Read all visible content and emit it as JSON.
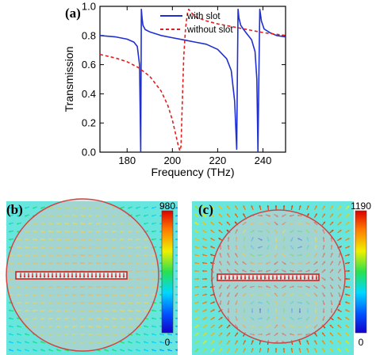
{
  "panel_a": {
    "label": "(a)",
    "chart_data": {
      "type": "line",
      "title": "",
      "xlabel": "Frequency (THz)",
      "ylabel": "Transmission",
      "xlim": [
        168,
        250
      ],
      "ylim": [
        0,
        1.0
      ],
      "xticks": [
        180,
        200,
        220,
        240
      ],
      "yticks": [
        0.0,
        0.2,
        0.4,
        0.6,
        0.8,
        1.0
      ],
      "grid": false,
      "legend_position": "top-right",
      "series": [
        {
          "name": "with slot",
          "color": "#1f2fd0",
          "style": "solid",
          "x": [
            168,
            175,
            180,
            183,
            184.5,
            185.5,
            186.0,
            186.3,
            186.6,
            187.0,
            188,
            190,
            195,
            200,
            205,
            210,
            215,
            220,
            224,
            226,
            227.5,
            228.4,
            228.7,
            229.0,
            229.4,
            230.2,
            231.5,
            233,
            235,
            236.5,
            237.3,
            237.8,
            238.2,
            238.6,
            239.3,
            240.5,
            243,
            246,
            250
          ],
          "y": [
            0.8,
            0.79,
            0.775,
            0.755,
            0.725,
            0.6,
            0.0,
            0.98,
            0.92,
            0.87,
            0.84,
            0.825,
            0.8,
            0.785,
            0.77,
            0.755,
            0.74,
            0.705,
            0.64,
            0.56,
            0.35,
            0.02,
            0.5,
            0.98,
            0.92,
            0.87,
            0.84,
            0.81,
            0.77,
            0.69,
            0.5,
            0.0,
            0.5,
            0.98,
            0.9,
            0.845,
            0.82,
            0.8,
            0.79
          ]
        },
        {
          "name": "without slot",
          "color": "#e02020",
          "style": "dashed",
          "x": [
            168,
            175,
            180,
            185,
            190,
            195,
            198,
            200,
            201.5,
            202.5,
            203.3,
            203.8,
            204.2,
            205.0,
            205.8,
            206.6,
            207.2,
            208.2,
            210,
            215,
            220,
            230,
            240,
            250
          ],
          "y": [
            0.67,
            0.645,
            0.62,
            0.58,
            0.52,
            0.42,
            0.32,
            0.22,
            0.12,
            0.05,
            0.01,
            0.04,
            0.25,
            0.65,
            0.85,
            0.95,
            0.98,
            0.96,
            0.93,
            0.9,
            0.88,
            0.85,
            0.82,
            0.8
          ]
        }
      ]
    }
  },
  "panel_b": {
    "label": "(b)",
    "colorbar": {
      "max": "980",
      "min": "0"
    }
  },
  "panel_c": {
    "label": "(c)",
    "colorbar": {
      "max": "1190",
      "min": "0"
    }
  },
  "colors": {
    "circle_fill": "#d2c7c9",
    "circle_edge": "#d24545",
    "slot_edge": "#cc2222",
    "background_field": "#68e6de"
  }
}
